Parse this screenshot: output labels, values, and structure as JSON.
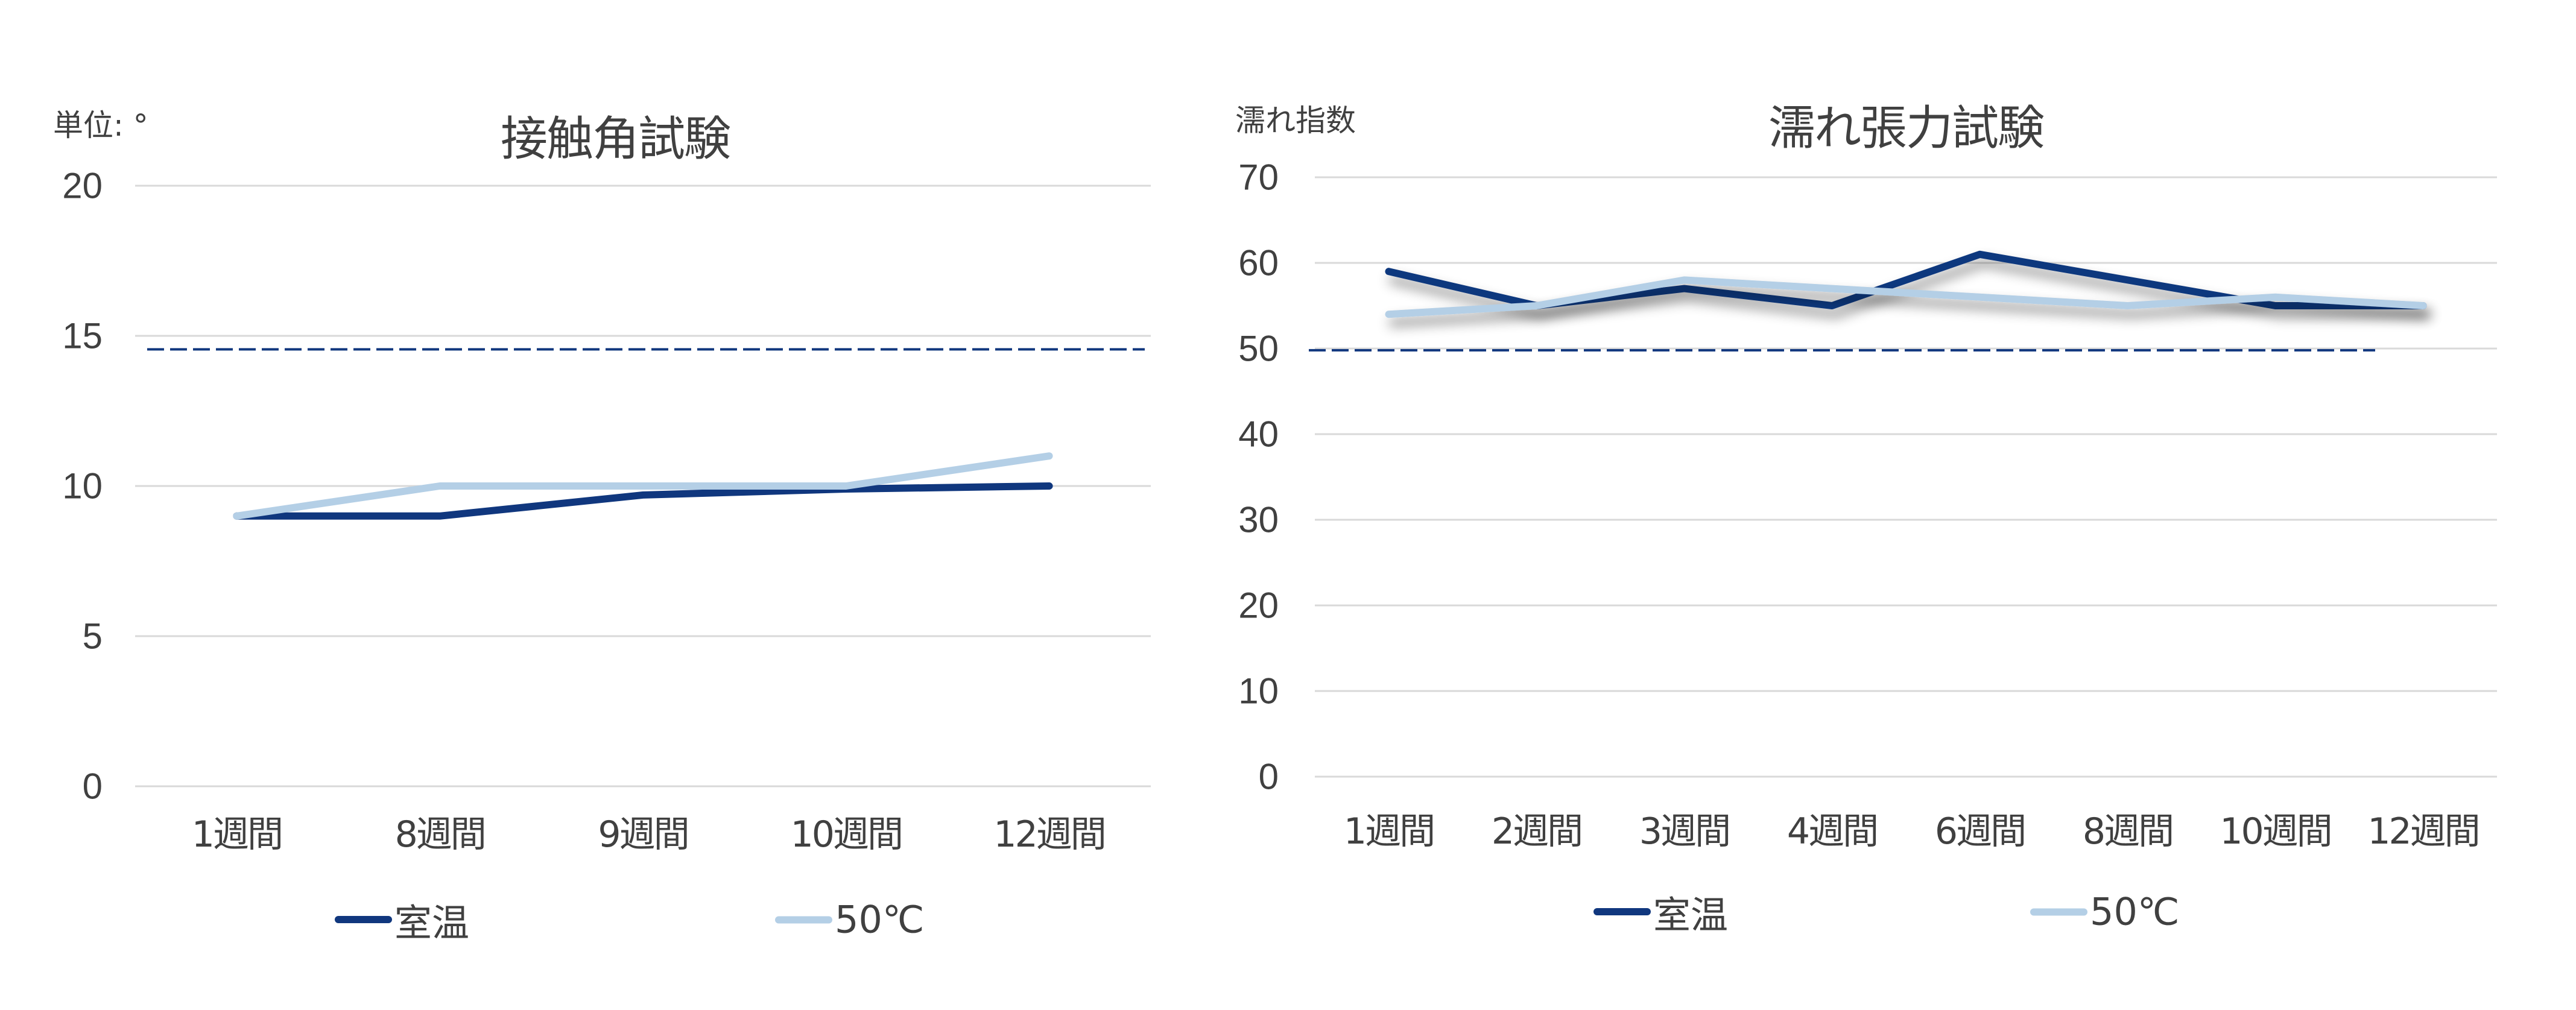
{
  "chart_data": [
    {
      "type": "line",
      "title": "接触角試験",
      "ylabel": "単位: °",
      "xlabel": "",
      "categories": [
        "1週間",
        "8週間",
        "9週間",
        "10週間",
        "12週間"
      ],
      "series": [
        {
          "name": "室温",
          "color": "#10377E",
          "values": [
            9,
            9,
            9.7,
            9.9,
            10
          ]
        },
        {
          "name": "50℃",
          "color": "#B4CFE6",
          "values": [
            9,
            10,
            10,
            10,
            11
          ]
        }
      ],
      "yticks": [
        "0",
        "5",
        "10",
        "15",
        "20"
      ],
      "ylim": [
        0,
        20
      ],
      "grid": true,
      "reference_line": {
        "value": 14.55,
        "style": "dashed",
        "color": "#10377E"
      },
      "legend_position": "bottom"
    },
    {
      "type": "line",
      "title": "濡れ張力試験",
      "ylabel": "濡れ指数",
      "xlabel": "",
      "categories": [
        "1週間",
        "2週間",
        "3週間",
        "4週間",
        "6週間",
        "8週間",
        "10週間",
        "12週間"
      ],
      "series": [
        {
          "name": "室温",
          "color": "#10377E",
          "values": [
            59,
            55,
            57,
            55,
            61,
            58,
            55,
            55
          ]
        },
        {
          "name": "50℃",
          "color": "#B4CFE6",
          "values": [
            54,
            55,
            58,
            57,
            56,
            55,
            56,
            55
          ]
        }
      ],
      "yticks": [
        "0",
        "10",
        "20",
        "30",
        "40",
        "50",
        "60",
        "70"
      ],
      "ylim": [
        0,
        70
      ],
      "grid": true,
      "reference_line": {
        "value": 49.8,
        "style": "dashed",
        "color": "#10377E"
      },
      "legend_position": "bottom"
    }
  ],
  "colors": {
    "gridline": "#D9D9D9",
    "text": "#404040",
    "room_temp": "#10377E",
    "fifty_c": "#B4CFE6"
  }
}
